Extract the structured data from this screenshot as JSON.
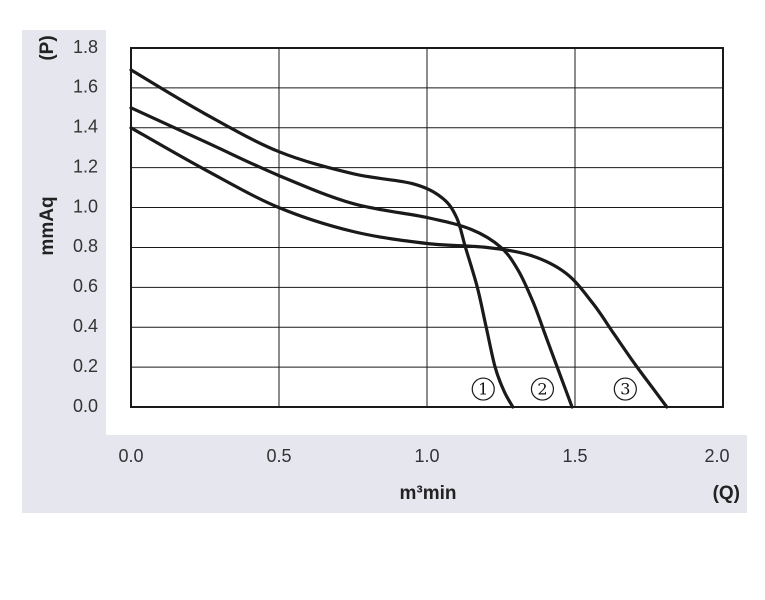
{
  "chart_data": {
    "type": "line",
    "xlabel": "m³min",
    "xlabel_suffix": "(Q)",
    "ylabel": "mmAq",
    "ylabel_suffix": "(P)",
    "xlim": [
      0,
      2.0
    ],
    "ylim": [
      0,
      1.8
    ],
    "xticks": [
      "0.0",
      "0.5",
      "1.0",
      "1.5",
      "2.0"
    ],
    "yticks": [
      "0.0",
      "0.2",
      "0.4",
      "0.6",
      "0.8",
      "1.0",
      "1.2",
      "1.4",
      "1.6",
      "1.8"
    ],
    "grid": true,
    "series": [
      {
        "label": "1",
        "x": [
          0.0,
          0.25,
          0.5,
          0.75,
          0.95,
          1.05,
          1.1,
          1.13,
          1.17,
          1.2,
          1.23,
          1.26,
          1.29
        ],
        "y": [
          1.69,
          1.47,
          1.28,
          1.17,
          1.12,
          1.05,
          0.95,
          0.8,
          0.6,
          0.4,
          0.2,
          0.08,
          0.0
        ],
        "label_at": [
          1.19,
          0.09
        ]
      },
      {
        "label": "2",
        "x": [
          0.0,
          0.25,
          0.5,
          0.75,
          1.0,
          1.15,
          1.25,
          1.31,
          1.36,
          1.4,
          1.44,
          1.47,
          1.49
        ],
        "y": [
          1.5,
          1.33,
          1.16,
          1.02,
          0.95,
          0.89,
          0.8,
          0.68,
          0.52,
          0.36,
          0.2,
          0.08,
          0.0
        ],
        "label_at": [
          1.39,
          0.09
        ]
      },
      {
        "label": "3",
        "x": [
          0.0,
          0.25,
          0.5,
          0.75,
          1.0,
          1.2,
          1.35,
          1.47,
          1.56,
          1.63,
          1.7,
          1.76,
          1.81
        ],
        "y": [
          1.4,
          1.19,
          1.0,
          0.88,
          0.82,
          0.8,
          0.76,
          0.67,
          0.52,
          0.37,
          0.22,
          0.1,
          0.0
        ],
        "label_at": [
          1.67,
          0.09
        ]
      }
    ]
  }
}
